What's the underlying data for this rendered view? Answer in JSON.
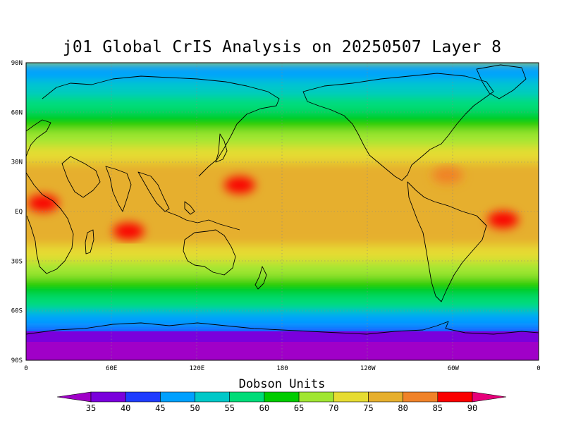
{
  "title": "j01 Global CrIS Analysis on 20250507 Layer 8",
  "colorbar": {
    "title": "Dobson Units",
    "ticks": [
      "35",
      "40",
      "45",
      "50",
      "55",
      "60",
      "65",
      "70",
      "75",
      "80",
      "85",
      "90"
    ],
    "bins": [
      {
        "label": "<35",
        "color": "#a000c8"
      },
      {
        "label": "35-40",
        "color": "#7a00dc"
      },
      {
        "label": "40-45",
        "color": "#1e3cff"
      },
      {
        "label": "45-50",
        "color": "#00a0ff"
      },
      {
        "label": "50-55",
        "color": "#00c8c8"
      },
      {
        "label": "55-60",
        "color": "#00dc78"
      },
      {
        "label": "60-65",
        "color": "#00cc00"
      },
      {
        "label": "65-70",
        "color": "#a0e632"
      },
      {
        "label": "70-75",
        "color": "#e6dc32"
      },
      {
        "label": "75-80",
        "color": "#e6af2d"
      },
      {
        "label": "80-85",
        "color": "#f08228"
      },
      {
        "label": "85-90",
        "color": "#fa0000"
      },
      {
        "label": ">90",
        "color": "#e6007a"
      }
    ]
  },
  "axes": {
    "lat_labels": [
      "90N",
      "60N",
      "30N",
      "EQ",
      "30S",
      "60S",
      "90S"
    ],
    "lon_labels": [
      "0",
      "60E",
      "120E",
      "180",
      "120W",
      "60W",
      "0"
    ]
  },
  "chart_data": {
    "type": "heatmap",
    "title": "j01 Global CrIS Analysis on 20250507 Layer 8",
    "colorbar_label": "Dobson Units",
    "value_range": [
      35,
      90
    ],
    "projection": "equirectangular, 0 to 360 longitude",
    "xlim": [
      0,
      360
    ],
    "ylim": [
      -90,
      90
    ],
    "zonal_mean_profile": {
      "lat": [
        -90,
        -80,
        -70,
        -60,
        -50,
        -40,
        -30,
        -20,
        -10,
        0,
        10,
        20,
        30,
        40,
        50,
        60,
        70,
        80,
        90
      ],
      "value": [
        37,
        38,
        42,
        52,
        60,
        65,
        72,
        76,
        77,
        78,
        77,
        77,
        75,
        71,
        66,
        60,
        55,
        50,
        48
      ]
    },
    "features": [
      {
        "name": "Africa equatorial maximum",
        "lon": 12,
        "lat": 5,
        "value": 88
      },
      {
        "name": "Western Pacific maximum",
        "lon": 150,
        "lat": 16,
        "value": 87
      },
      {
        "name": "Indian Ocean maximum",
        "lon": 72,
        "lat": -12,
        "value": 86
      },
      {
        "name": "Atlantic maximum",
        "lon": 335,
        "lat": -5,
        "value": 86
      },
      {
        "name": "Caribbean maximum",
        "lon": 296,
        "lat": 22,
        "value": 84
      },
      {
        "name": "Antarctic minimum",
        "lon": 90,
        "lat": -85,
        "value": 35
      }
    ]
  }
}
